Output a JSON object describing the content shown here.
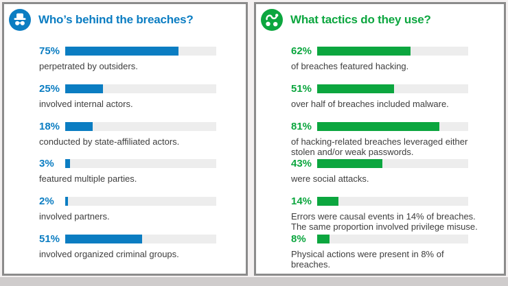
{
  "page": {
    "background": "#f4f1f1",
    "bottom_strip_color": "#cfcccc",
    "panel_border_color": "#8b8b8b",
    "bar_track_color": "#ededed",
    "caption_color": "#3d3d3d"
  },
  "panels": [
    {
      "title": "Who’s behind the breaches?",
      "icon": "incognito-spy-icon",
      "accent": "#0b7dc2",
      "rows": [
        {
          "percent": 75,
          "label": "75%",
          "caption": "perpetrated by outsiders."
        },
        {
          "percent": 25,
          "label": "25%",
          "caption": "involved internal actors."
        },
        {
          "percent": 18,
          "label": "18%",
          "caption": "conducted by state-affiliated actors."
        },
        {
          "percent": 3,
          "label": "3%",
          "caption": "featured multiple parties."
        },
        {
          "percent": 2,
          "label": "2%",
          "caption": "involved partners."
        },
        {
          "percent": 51,
          "label": "51%",
          "caption": "involved organized criminal groups."
        }
      ]
    },
    {
      "title": "What tactics do they use?",
      "icon": "tactics-icon",
      "accent": "#0ca63f",
      "rows": [
        {
          "percent": 62,
          "label": "62%",
          "caption": "of breaches featured hacking."
        },
        {
          "percent": 51,
          "label": "51%",
          "caption": "over half of breaches included malware."
        },
        {
          "percent": 81,
          "label": "81%",
          "caption": "of hacking-related breaches leveraged either\nstolen and/or weak passwords."
        },
        {
          "percent": 43,
          "label": "43%",
          "caption": "were social attacks."
        },
        {
          "percent": 14,
          "label": "14%",
          "caption": "Errors were causal events in 14% of breaches.\nThe same proportion involved privilege misuse."
        },
        {
          "percent": 8,
          "label": "8%",
          "caption": "Physical actions were present in 8% of\nbreaches."
        }
      ]
    }
  ],
  "chart_data": [
    {
      "type": "bar",
      "orientation": "horizontal",
      "title": "Who’s behind the breaches?",
      "categories": [
        "perpetrated by outsiders.",
        "involved internal actors.",
        "conducted by state-affiliated actors.",
        "featured multiple parties.",
        "involved partners.",
        "involved organized criminal groups."
      ],
      "values": [
        75,
        25,
        18,
        3,
        2,
        51
      ],
      "value_unit": "%",
      "xlim": [
        0,
        100
      ],
      "bar_color": "#0b7dc2",
      "track_color": "#ededed",
      "grid": false,
      "legend": false
    },
    {
      "type": "bar",
      "orientation": "horizontal",
      "title": "What tactics do they use?",
      "categories": [
        "of breaches featured hacking.",
        "over half of breaches included malware.",
        "of hacking-related breaches leveraged either stolen and/or weak passwords.",
        "were social attacks.",
        "Errors were causal events in 14% of breaches. The same proportion involved privilege misuse.",
        "Physical actions were present in 8% of breaches."
      ],
      "values": [
        62,
        51,
        81,
        43,
        14,
        8
      ],
      "value_unit": "%",
      "xlim": [
        0,
        100
      ],
      "bar_color": "#0ca63f",
      "track_color": "#ededed",
      "grid": false,
      "legend": false
    }
  ]
}
